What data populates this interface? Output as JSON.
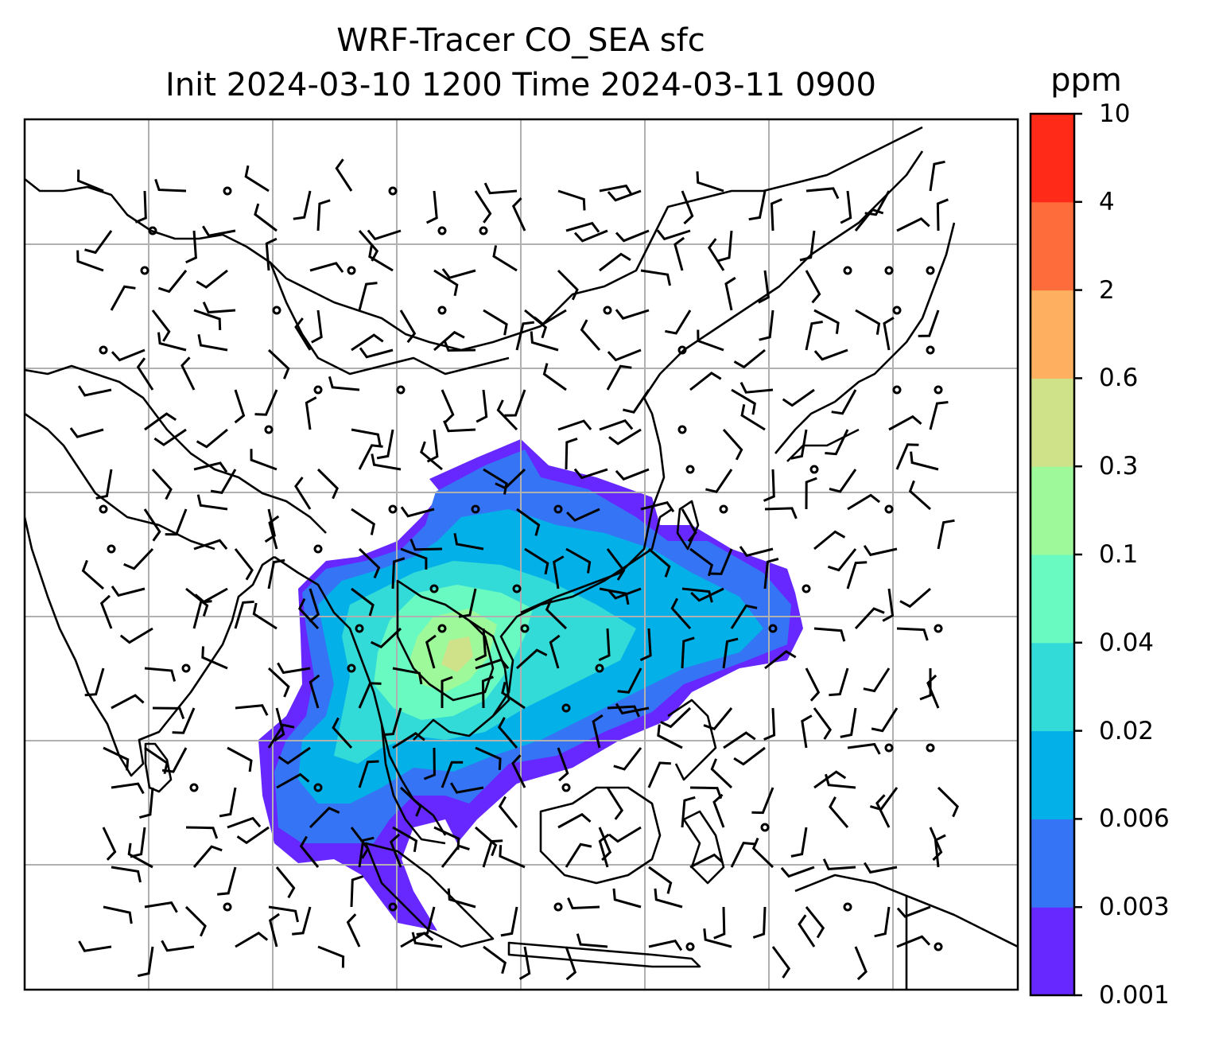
{
  "title": {
    "line1": "WRF-Tracer CO_SEA sfc",
    "line2": "Init 2024-03-10 1200 Time 2024-03-11 0900"
  },
  "colorbar": {
    "unit": "ppm",
    "levels": [
      "0.001",
      "0.003",
      "0.006",
      "0.02",
      "0.04",
      "0.1",
      "0.3",
      "0.6",
      "2",
      "4",
      "10"
    ],
    "colors": [
      "#6628ff",
      "#3575f5",
      "#04b0e8",
      "#33dbd8",
      "#68fac1",
      "#9ef99b",
      "#cfe28a",
      "#ffaf60",
      "#ff6c3b",
      "#ff2a17"
    ]
  },
  "map": {
    "graticule": "on",
    "wind_barbs": "shown",
    "coastlines": "shown",
    "border_color": "#000000",
    "grid_color": "#b0b0b0"
  }
}
